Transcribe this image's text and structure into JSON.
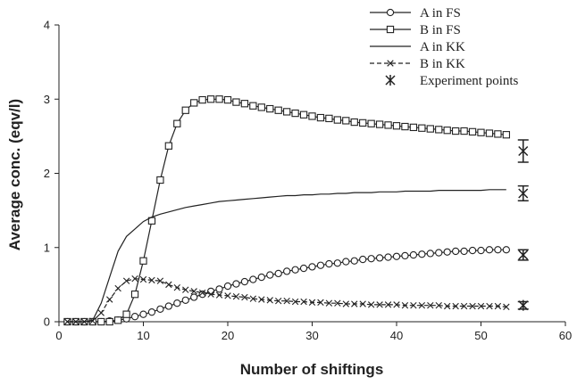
{
  "chart_data": {
    "type": "line",
    "xlabel": "Number of shiftings",
    "ylabel": "Average conc. (eqv/l)",
    "xlim": [
      0,
      60
    ],
    "ylim": [
      0,
      4
    ],
    "xticks": [
      0,
      10,
      20,
      30,
      40,
      50,
      60
    ],
    "yticks": [
      0,
      1,
      2,
      3,
      4
    ],
    "grid": false,
    "legend_position": "top-right",
    "series": [
      {
        "name": "A in FS",
        "marker": "circle",
        "line": "solid",
        "x": [
          1,
          2,
          3,
          4,
          5,
          6,
          7,
          8,
          9,
          10,
          11,
          12,
          13,
          14,
          15,
          16,
          17,
          18,
          19,
          20,
          21,
          22,
          23,
          24,
          25,
          26,
          27,
          28,
          29,
          30,
          31,
          32,
          33,
          34,
          35,
          36,
          37,
          38,
          39,
          40,
          41,
          42,
          43,
          44,
          45,
          46,
          47,
          48,
          49,
          50,
          51,
          52,
          53
        ],
        "y": [
          0,
          0,
          0,
          0,
          0,
          0.01,
          0.02,
          0.04,
          0.07,
          0.1,
          0.13,
          0.17,
          0.21,
          0.25,
          0.29,
          0.33,
          0.37,
          0.41,
          0.44,
          0.48,
          0.51,
          0.54,
          0.57,
          0.6,
          0.63,
          0.65,
          0.68,
          0.7,
          0.72,
          0.74,
          0.76,
          0.78,
          0.79,
          0.81,
          0.82,
          0.84,
          0.85,
          0.86,
          0.87,
          0.88,
          0.89,
          0.9,
          0.91,
          0.92,
          0.93,
          0.94,
          0.95,
          0.95,
          0.96,
          0.96,
          0.97,
          0.97,
          0.97
        ]
      },
      {
        "name": "B in FS",
        "marker": "square",
        "line": "solid",
        "x": [
          1,
          2,
          3,
          4,
          5,
          6,
          7,
          8,
          9,
          10,
          11,
          12,
          13,
          14,
          15,
          16,
          17,
          18,
          19,
          20,
          21,
          22,
          23,
          24,
          25,
          26,
          27,
          28,
          29,
          30,
          31,
          32,
          33,
          34,
          35,
          36,
          37,
          38,
          39,
          40,
          41,
          42,
          43,
          44,
          45,
          46,
          47,
          48,
          49,
          50,
          51,
          52,
          53
        ],
        "y": [
          0,
          0,
          0,
          0,
          0,
          0,
          0.02,
          0.1,
          0.37,
          0.82,
          1.36,
          1.91,
          2.37,
          2.67,
          2.85,
          2.95,
          2.99,
          3,
          3,
          2.99,
          2.96,
          2.94,
          2.91,
          2.89,
          2.87,
          2.85,
          2.83,
          2.81,
          2.79,
          2.77,
          2.75,
          2.74,
          2.72,
          2.71,
          2.69,
          2.68,
          2.67,
          2.66,
          2.65,
          2.64,
          2.63,
          2.62,
          2.61,
          2.6,
          2.59,
          2.58,
          2.57,
          2.57,
          2.56,
          2.55,
          2.54,
          2.53,
          2.52
        ]
      },
      {
        "name": "A in KK",
        "marker": "none",
        "line": "solid",
        "x": [
          1,
          2,
          3,
          4,
          5,
          6,
          7,
          8,
          9,
          10,
          11,
          12,
          13,
          14,
          15,
          16,
          17,
          18,
          19,
          20,
          21,
          22,
          23,
          24,
          25,
          26,
          27,
          28,
          29,
          30,
          31,
          32,
          33,
          34,
          35,
          36,
          37,
          38,
          39,
          40,
          41,
          42,
          43,
          44,
          45,
          46,
          47,
          48,
          49,
          50,
          51,
          52,
          53
        ],
        "y": [
          0,
          0,
          0,
          0.02,
          0.25,
          0.6,
          0.95,
          1.15,
          1.25,
          1.35,
          1.41,
          1.45,
          1.48,
          1.51,
          1.54,
          1.56,
          1.58,
          1.6,
          1.62,
          1.63,
          1.64,
          1.65,
          1.66,
          1.67,
          1.68,
          1.69,
          1.7,
          1.7,
          1.71,
          1.71,
          1.72,
          1.72,
          1.73,
          1.73,
          1.74,
          1.74,
          1.74,
          1.75,
          1.75,
          1.75,
          1.76,
          1.76,
          1.76,
          1.76,
          1.77,
          1.77,
          1.77,
          1.77,
          1.77,
          1.77,
          1.78,
          1.78,
          1.78
        ]
      },
      {
        "name": "B in KK",
        "marker": "x",
        "line": "dashed",
        "x": [
          1,
          2,
          3,
          4,
          5,
          6,
          7,
          8,
          9,
          10,
          11,
          12,
          13,
          14,
          15,
          16,
          17,
          18,
          19,
          20,
          21,
          22,
          23,
          24,
          25,
          26,
          27,
          28,
          29,
          30,
          31,
          32,
          33,
          34,
          35,
          36,
          37,
          38,
          39,
          40,
          41,
          42,
          43,
          44,
          45,
          46,
          47,
          48,
          49,
          50,
          51,
          52,
          53
        ],
        "y": [
          0,
          0,
          0,
          0.01,
          0.12,
          0.3,
          0.45,
          0.55,
          0.58,
          0.57,
          0.56,
          0.55,
          0.5,
          0.46,
          0.43,
          0.41,
          0.39,
          0.37,
          0.36,
          0.35,
          0.34,
          0.33,
          0.31,
          0.3,
          0.29,
          0.28,
          0.28,
          0.27,
          0.27,
          0.26,
          0.26,
          0.25,
          0.25,
          0.24,
          0.24,
          0.24,
          0.23,
          0.23,
          0.23,
          0.23,
          0.22,
          0.22,
          0.22,
          0.22,
          0.22,
          0.21,
          0.21,
          0.21,
          0.21,
          0.21,
          0.21,
          0.21,
          0.2
        ]
      },
      {
        "name": "Experiment points",
        "marker": "asterisk",
        "line": "none",
        "x": [
          55,
          55,
          55,
          55
        ],
        "y": [
          2.3,
          1.73,
          0.9,
          0.22
        ],
        "err": [
          0.15,
          0.1,
          0.07,
          0.05
        ]
      }
    ]
  }
}
